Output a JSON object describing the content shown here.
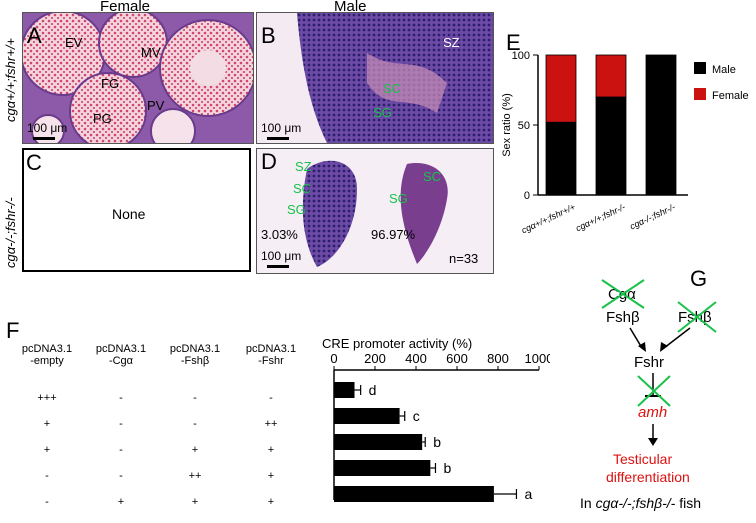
{
  "headers": {
    "female": "Female",
    "male": "Male"
  },
  "row_labels": {
    "top": "cgα+/+;fshr+/+",
    "bottom": "cgα-/-;fshr-/-"
  },
  "panels": {
    "A": {
      "letter": "A",
      "labels": [
        "EV",
        "MV",
        "FG",
        "PV",
        "PG"
      ],
      "scale": "100 μm"
    },
    "B": {
      "letter": "B",
      "labels": [
        "SZ",
        "SC",
        "SG"
      ],
      "scale": "100 μm"
    },
    "C": {
      "letter": "C",
      "text": "None"
    },
    "D": {
      "letter": "D",
      "labels": [
        "SZ",
        "SC",
        "SG",
        "SC",
        "SG"
      ],
      "pct_left": "3.03%",
      "pct_right": "96.97%",
      "n": "n=33",
      "scale": "100 μm"
    },
    "E": {
      "letter": "E"
    },
    "F": {
      "letter": "F"
    },
    "G": {
      "letter": "G"
    }
  },
  "chart_data": [
    {
      "type": "bar",
      "subtype": "stacked",
      "ylabel": "Sex ratio (%)",
      "ylim": [
        0,
        100
      ],
      "yticks": [
        "0",
        "50",
        "100"
      ],
      "categories": [
        "cgα+/+;fshr+/+",
        "cgα+/+;fshr-/-",
        "cgα-/-;fshr-/-"
      ],
      "series": [
        {
          "name": "Male",
          "color": "#000000",
          "values": [
            52,
            70,
            100
          ]
        },
        {
          "name": "Female",
          "color": "#cc1111",
          "values": [
            48,
            30,
            0
          ]
        }
      ],
      "legend": "right"
    },
    {
      "type": "bar",
      "subtype": "horizontal",
      "title": "CRE promoter activity (%)",
      "xlim": [
        0,
        1000
      ],
      "xticks": [
        "0",
        "200",
        "400",
        "600",
        "800",
        "1000"
      ],
      "values": [
        100,
        320,
        430,
        470,
        780
      ],
      "errors": [
        30,
        25,
        15,
        25,
        110
      ],
      "letters": [
        "d",
        "c",
        "b",
        "b",
        "a"
      ]
    }
  ],
  "table_F": {
    "columns": [
      "pcDNA3.1\n-empty",
      "pcDNA3.1\n-Cgα",
      "pcDNA3.1\n-Fshβ",
      "pcDNA3.1\n-Fshr"
    ],
    "rows": [
      [
        "+++",
        "-",
        "-",
        "-"
      ],
      [
        "+",
        "-",
        "-",
        "++"
      ],
      [
        "+",
        "-",
        "+",
        "+"
      ],
      [
        "-",
        "-",
        "++",
        "+"
      ],
      [
        "-",
        "+",
        "+",
        "+"
      ]
    ]
  },
  "pathway_G": {
    "cga": "Cgα",
    "fshb1": "Fshβ",
    "fshb2": "Fshβ",
    "fshr": "Fshr",
    "amh": "amh",
    "outcome_line1": "Testicular",
    "outcome_line2": "differentiation",
    "footer_prefix": "In ",
    "footer_genotype": "cgα-/-;fshβ-/-",
    "footer_suffix": " fish"
  },
  "colors": {
    "red": "#dd1111",
    "green": "#18c24a",
    "he_pink": "#d98aa8",
    "he_purple": "#6a3a8c"
  }
}
